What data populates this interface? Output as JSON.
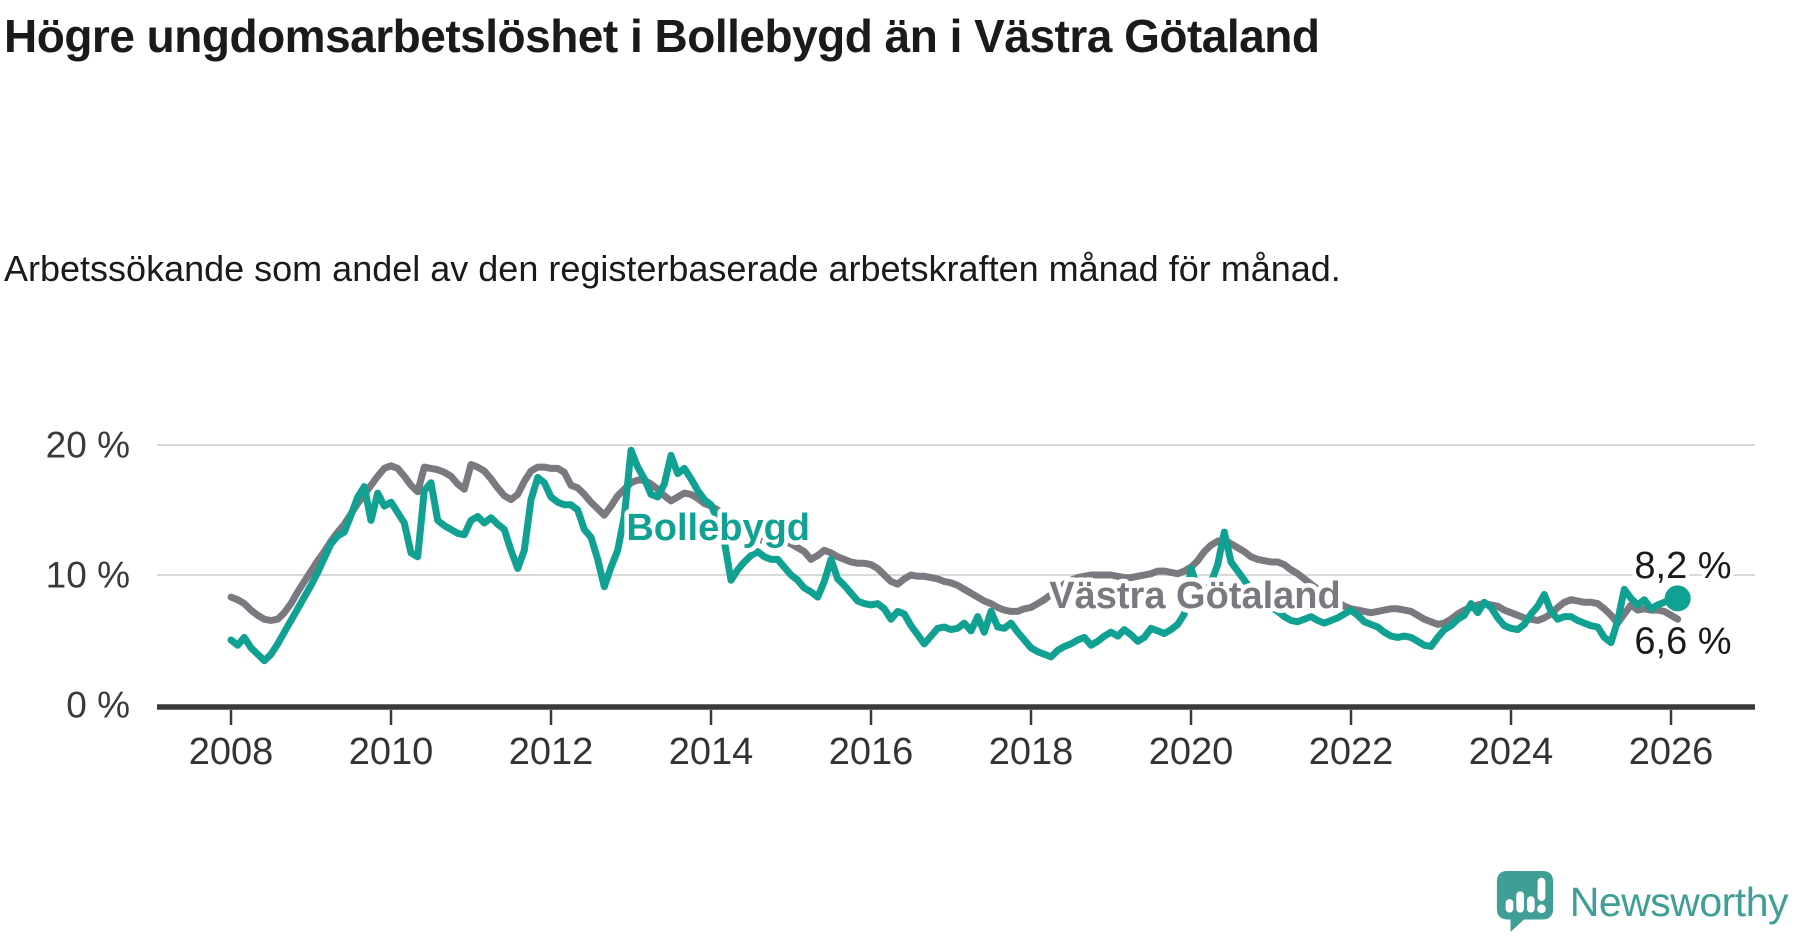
{
  "header": {
    "title": "Högre ungdomsarbetslöshet i Bollebygd än i Västra Götaland",
    "subtitle": "Arbetssökande som andel av den registerbaserade arbetskraften månad för månad."
  },
  "footer": {
    "brand": "Newsworthy",
    "logo_color": "#3f9e95"
  },
  "chart_data": {
    "type": "line",
    "title": "Högre ungdomsarbetslöshet i Bollebygd än i Västra Götaland",
    "xlabel": "",
    "ylabel": "",
    "grid": "horizontal-only",
    "legend_position": "inline-labels",
    "x_start": {
      "year": 2008,
      "month": 1
    },
    "x_interval_months": 1,
    "xlim": [
      2008,
      2026.4
    ],
    "ylim": [
      0,
      21.5
    ],
    "x_ticks": [
      {
        "year": 2008,
        "label": "2008"
      },
      {
        "year": 2010,
        "label": "2010"
      },
      {
        "year": 2012,
        "label": "2012"
      },
      {
        "year": 2014,
        "label": "2014"
      },
      {
        "year": 2016,
        "label": "2016"
      },
      {
        "year": 2018,
        "label": "2018"
      },
      {
        "year": 2020,
        "label": "2020"
      },
      {
        "year": 2022,
        "label": "2022"
      },
      {
        "year": 2024,
        "label": "2024"
      },
      {
        "year": 2026,
        "label": "2026"
      }
    ],
    "y_ticks": [
      {
        "value": 0,
        "label": "0 %"
      },
      {
        "value": 10,
        "label": "10 %"
      },
      {
        "value": 20,
        "label": "20 %"
      }
    ],
    "series": [
      {
        "name": "Västra Götaland",
        "color": "#7b7980",
        "end_value_label": "6,6 %",
        "values": [
          8.3,
          8.1,
          7.8,
          7.3,
          6.9,
          6.6,
          6.5,
          6.6,
          7.1,
          7.8,
          8.7,
          9.5,
          10.3,
          11.1,
          11.8,
          12.6,
          13.3,
          13.9,
          14.7,
          15.5,
          16.2,
          16.9,
          17.6,
          18.2,
          18.4,
          18.2,
          17.6,
          16.9,
          16.4,
          18.3,
          18.2,
          18.1,
          17.9,
          17.6,
          17.0,
          16.6,
          18.5,
          18.3,
          18.0,
          17.4,
          16.7,
          16.1,
          15.8,
          16.2,
          17.2,
          18.0,
          18.3,
          18.3,
          18.2,
          18.2,
          17.9,
          16.9,
          16.7,
          16.2,
          15.6,
          15.1,
          14.6,
          15.3,
          16.1,
          16.6,
          17.1,
          17.3,
          17.3,
          17.0,
          16.6,
          16.1,
          15.7,
          16.0,
          16.3,
          16.2,
          15.9,
          15.5,
          15.3,
          15.0,
          14.7,
          14.3,
          13.9,
          13.5,
          13.1,
          12.8,
          12.6,
          12.5,
          12.5,
          12.6,
          12.4,
          12.1,
          11.8,
          11.2,
          11.5,
          11.9,
          11.7,
          11.4,
          11.2,
          11.0,
          10.9,
          10.9,
          10.8,
          10.5,
          10.0,
          9.5,
          9.3,
          9.7,
          10.0,
          9.9,
          9.9,
          9.8,
          9.7,
          9.5,
          9.4,
          9.2,
          8.9,
          8.6,
          8.3,
          8.0,
          7.8,
          7.5,
          7.3,
          7.2,
          7.2,
          7.4,
          7.5,
          7.8,
          8.1,
          8.5,
          8.9,
          9.3,
          9.6,
          9.8,
          9.9,
          10.0,
          10.0,
          10.0,
          10.0,
          9.9,
          9.8,
          9.8,
          9.9,
          10.0,
          10.1,
          10.3,
          10.3,
          10.2,
          10.1,
          10.3,
          10.6,
          11.1,
          11.8,
          12.3,
          12.6,
          12.7,
          12.4,
          12.1,
          11.8,
          11.4,
          11.2,
          11.1,
          11.0,
          11.0,
          10.8,
          10.4,
          10.1,
          9.7,
          9.3,
          8.9,
          8.5,
          8.2,
          7.9,
          7.6,
          7.4,
          7.3,
          7.2,
          7.1,
          7.2,
          7.3,
          7.4,
          7.4,
          7.3,
          7.2,
          6.9,
          6.6,
          6.4,
          6.2,
          6.3,
          6.6,
          7.0,
          7.3,
          7.5,
          7.7,
          7.8,
          7.7,
          7.6,
          7.3,
          7.1,
          6.9,
          6.7,
          6.6,
          6.5,
          6.7,
          7.0,
          7.5,
          7.9,
          8.1,
          8.0,
          7.9,
          7.9,
          7.8,
          7.4,
          6.9,
          6.3,
          7.0,
          7.7,
          7.3,
          7.4,
          7.3,
          7.3,
          7.2,
          6.9,
          6.6
        ]
      },
      {
        "name": "Bollebygd",
        "color": "#11a192",
        "end_value_label": "8,2 %",
        "end_dot": true,
        "values": [
          5.0,
          4.6,
          5.2,
          4.4,
          3.9,
          3.4,
          3.9,
          4.7,
          5.6,
          6.5,
          7.4,
          8.3,
          9.2,
          10.2,
          11.3,
          12.4,
          13.0,
          13.3,
          14.6,
          16.0,
          16.8,
          14.2,
          16.3,
          15.3,
          15.6,
          14.8,
          14.0,
          11.7,
          11.4,
          16.5,
          17.1,
          14.2,
          13.8,
          13.5,
          13.2,
          13.1,
          14.2,
          14.5,
          14.0,
          14.4,
          13.9,
          13.5,
          11.9,
          10.5,
          11.9,
          15.8,
          17.5,
          17.1,
          16.0,
          15.6,
          15.4,
          15.4,
          15.0,
          13.5,
          12.9,
          11.2,
          9.1,
          10.6,
          11.9,
          14.5,
          19.6,
          18.3,
          17.4,
          16.2,
          16.0,
          17.0,
          19.2,
          17.8,
          18.2,
          17.4,
          16.5,
          15.8,
          15.4,
          14.2,
          12.6,
          9.6,
          10.4,
          11.0,
          11.5,
          11.8,
          11.4,
          11.2,
          11.2,
          10.6,
          10.0,
          9.6,
          9.0,
          8.7,
          8.3,
          9.5,
          11.2,
          9.7,
          9.2,
          8.6,
          8.0,
          7.8,
          7.7,
          7.8,
          7.4,
          6.6,
          7.2,
          7.0,
          6.1,
          5.4,
          4.7,
          5.3,
          5.9,
          6.0,
          5.8,
          5.9,
          6.3,
          5.7,
          6.8,
          5.6,
          7.2,
          6.0,
          5.9,
          6.3,
          5.6,
          5.0,
          4.4,
          4.1,
          3.9,
          3.7,
          4.2,
          4.5,
          4.7,
          5.0,
          5.2,
          4.6,
          4.9,
          5.3,
          5.6,
          5.3,
          5.8,
          5.4,
          4.9,
          5.2,
          5.9,
          5.7,
          5.5,
          5.8,
          6.2,
          7.0,
          10.5,
          9.0,
          8.4,
          9.4,
          10.8,
          13.3,
          11.0,
          10.3,
          9.6,
          8.9,
          8.2,
          7.8,
          7.5,
          7.2,
          6.8,
          6.5,
          6.4,
          6.6,
          6.8,
          6.5,
          6.3,
          6.5,
          6.7,
          7.0,
          7.3,
          6.9,
          6.4,
          6.2,
          6.0,
          5.6,
          5.3,
          5.2,
          5.3,
          5.2,
          4.9,
          4.6,
          4.5,
          5.2,
          5.8,
          6.1,
          6.6,
          6.9,
          7.8,
          7.1,
          7.9,
          7.5,
          6.7,
          6.1,
          5.9,
          5.8,
          6.2,
          7.0,
          7.6,
          8.5,
          7.2,
          6.6,
          6.8,
          6.8,
          6.5,
          6.3,
          6.1,
          6.0,
          5.2,
          4.8,
          6.5,
          8.9,
          8.2,
          7.7,
          8.1,
          7.4,
          7.7,
          7.9,
          8.1,
          8.2
        ]
      }
    ],
    "series_labels": [
      {
        "text": "Bollebygd",
        "year": 2014.09,
        "value": 13.6,
        "color": "#11a192"
      },
      {
        "text": "Västra Götaland",
        "year": 2020.05,
        "value": 8.4,
        "color": "#7b7980"
      }
    ],
    "value_labels": [
      {
        "text": "8,2 %",
        "year": 2026.15,
        "value": 10.7
      },
      {
        "text": "6,6 %",
        "year": 2026.15,
        "value": 4.9
      }
    ]
  }
}
